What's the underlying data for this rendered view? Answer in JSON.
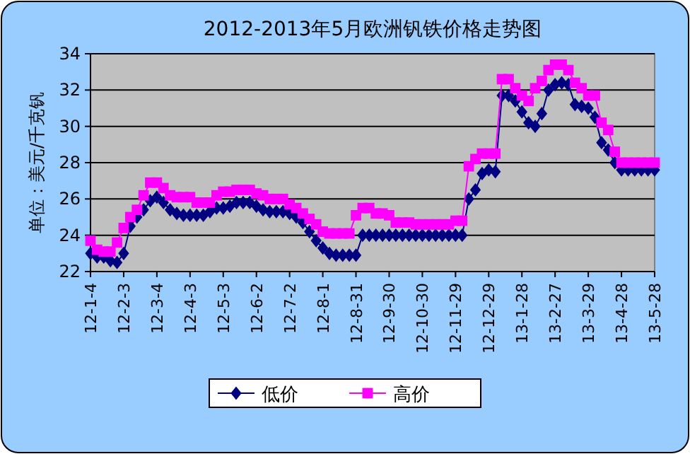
{
  "chart_data": {
    "type": "line",
    "title": "2012-2013年5月欧洲钒铁价格走势图",
    "ylabel": "单位：美元/千克钒",
    "categories": [
      "12-1-4",
      null,
      null,
      null,
      null,
      "12-2-3",
      null,
      null,
      null,
      null,
      "12-3-4",
      null,
      null,
      null,
      null,
      "12-4-3",
      null,
      null,
      null,
      null,
      "12-5-3",
      null,
      null,
      null,
      null,
      "12-6-2",
      null,
      null,
      null,
      null,
      "12-7-2",
      null,
      null,
      null,
      null,
      "12-8-1",
      null,
      null,
      null,
      null,
      "12-8-31",
      null,
      null,
      null,
      null,
      "12-9-30",
      null,
      null,
      null,
      null,
      "12-10-30",
      null,
      null,
      null,
      null,
      "12-11-29",
      null,
      null,
      null,
      null,
      "12-12-29",
      null,
      null,
      null,
      null,
      "13-1-28",
      null,
      null,
      null,
      null,
      "13-2-27",
      null,
      null,
      null,
      null,
      "13-3-29",
      null,
      null,
      null,
      null,
      "13-4-28",
      null,
      null,
      null,
      null,
      "13-5-28"
    ],
    "series": [
      {
        "name": "低价",
        "color": "#000080",
        "marker": "diamond",
        "values": [
          23.0,
          22.8,
          22.8,
          22.6,
          22.5,
          23.0,
          24.5,
          25.0,
          25.4,
          25.9,
          26.1,
          25.8,
          25.4,
          25.2,
          25.1,
          25.1,
          25.1,
          25.1,
          25.3,
          25.5,
          25.5,
          25.6,
          25.8,
          25.8,
          25.8,
          25.6,
          25.4,
          25.3,
          25.3,
          25.3,
          25.2,
          25.0,
          24.7,
          24.2,
          23.7,
          23.3,
          23.0,
          22.9,
          22.9,
          22.9,
          22.9,
          24.0,
          24.0,
          24.0,
          24.0,
          24.0,
          24.0,
          24.0,
          24.0,
          24.0,
          24.0,
          24.0,
          24.0,
          24.0,
          24.0,
          24.0,
          24.0,
          26.0,
          26.5,
          27.4,
          27.6,
          27.5,
          31.7,
          31.7,
          31.4,
          30.8,
          30.2,
          30.0,
          30.7,
          32.0,
          32.3,
          32.4,
          32.3,
          31.2,
          31.1,
          31.0,
          30.5,
          29.1,
          28.7,
          28.0,
          27.6,
          27.6,
          27.6,
          27.6,
          27.6,
          27.6
        ]
      },
      {
        "name": "高价",
        "color": "#ff00ff",
        "marker": "square",
        "values": [
          23.7,
          23.2,
          23.1,
          23.1,
          23.6,
          24.4,
          25.0,
          25.4,
          26.2,
          26.9,
          26.9,
          26.6,
          26.2,
          26.1,
          26.1,
          26.1,
          25.8,
          25.8,
          25.8,
          26.2,
          26.4,
          26.4,
          26.5,
          26.5,
          26.5,
          26.3,
          26.2,
          26.0,
          26.0,
          26.0,
          25.7,
          25.5,
          25.2,
          24.9,
          24.6,
          24.2,
          24.1,
          24.1,
          24.1,
          24.1,
          25.1,
          25.5,
          25.5,
          25.2,
          25.2,
          25.1,
          24.7,
          24.7,
          24.7,
          24.6,
          24.6,
          24.6,
          24.6,
          24.6,
          24.6,
          24.8,
          24.8,
          27.8,
          28.2,
          28.5,
          28.5,
          28.5,
          32.6,
          32.6,
          32.1,
          31.7,
          31.4,
          32.1,
          32.5,
          33.1,
          33.4,
          33.4,
          33.1,
          32.4,
          32.1,
          31.7,
          31.7,
          30.2,
          29.8,
          28.6,
          28.0,
          28.0,
          28.0,
          28.0,
          28.0,
          28.0
        ]
      }
    ],
    "ylim": [
      22,
      34
    ],
    "yticks": [
      22,
      24,
      26,
      28,
      30,
      32,
      34
    ],
    "grid": "y",
    "legend": "bottom"
  }
}
